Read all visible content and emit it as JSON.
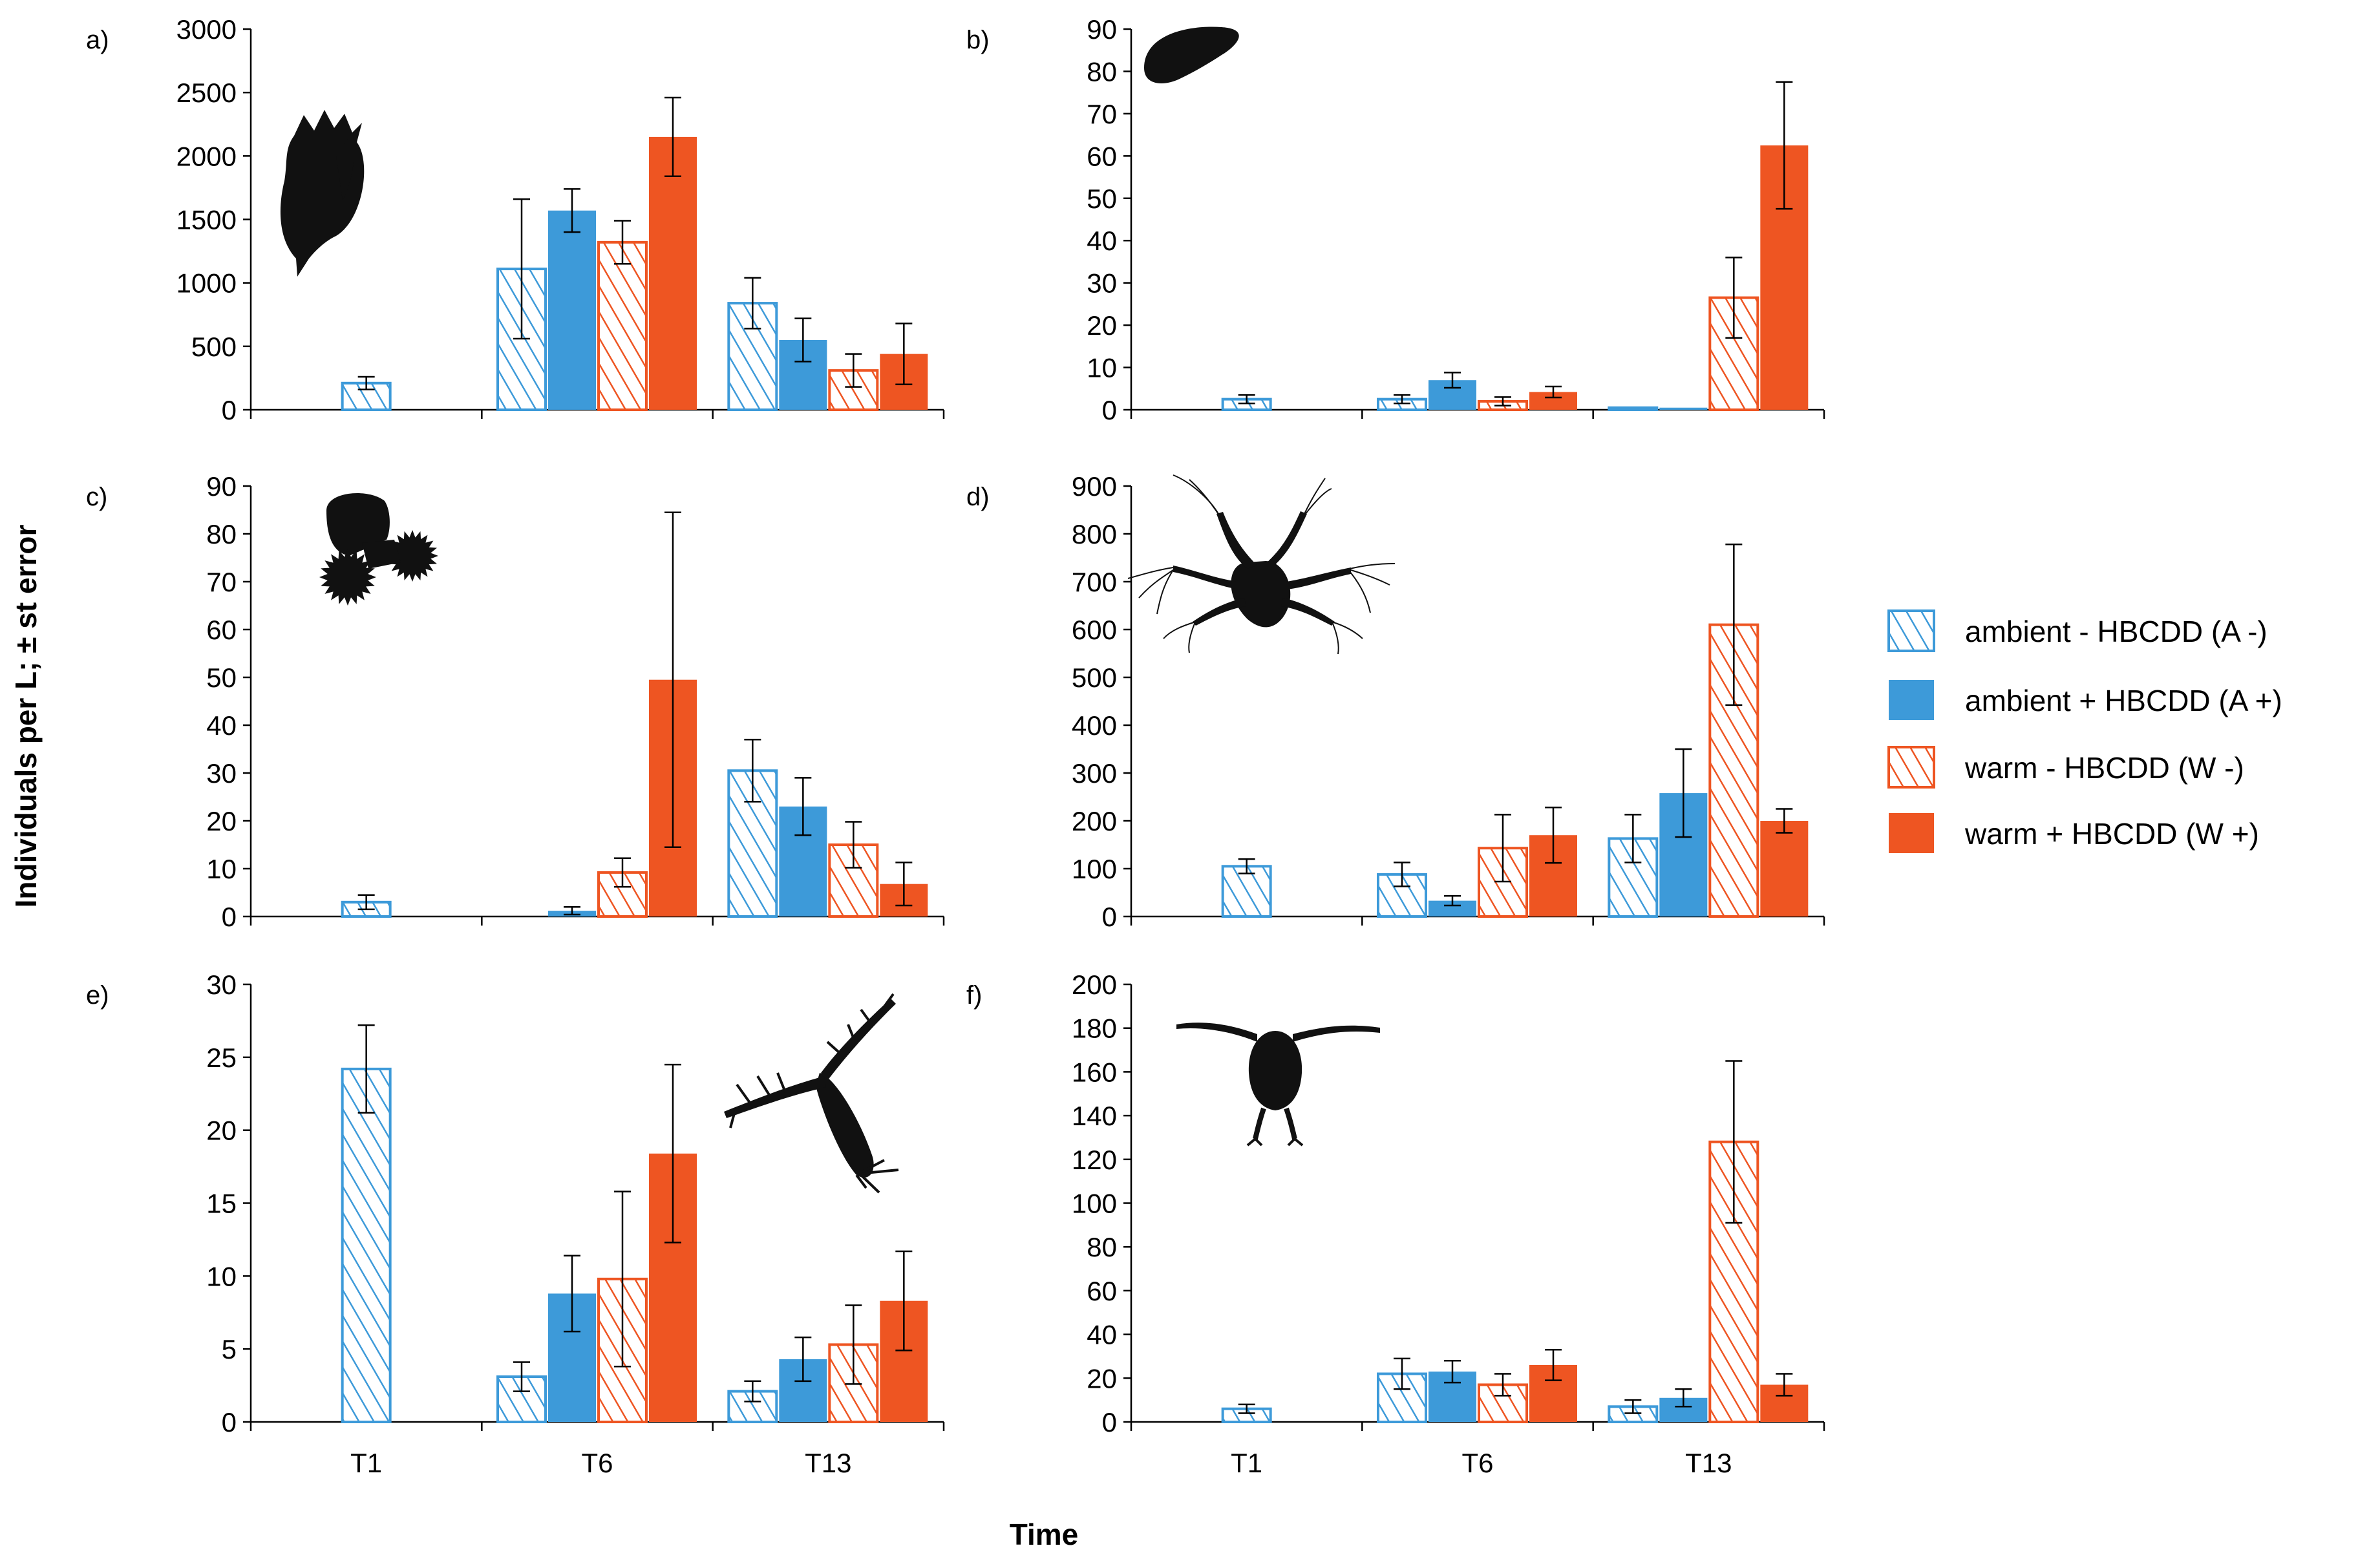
{
  "figure": {
    "ylabel": "Individuals per L; ± st error",
    "xlabel": "Time"
  },
  "legend": {
    "items": [
      {
        "key": "Am",
        "label": "ambient - HBCDD (A -)"
      },
      {
        "key": "Ap",
        "label": "ambient + HBCDD (A +)"
      },
      {
        "key": "Wm",
        "label": "warm - HBCDD (W -)"
      },
      {
        "key": "Wp",
        "label": "warm + HBCDD (W +)"
      }
    ]
  },
  "colors": {
    "blue": "#3d9ad9",
    "orange": "#ee5522",
    "axis": "#000000",
    "silhouette": "#111111"
  },
  "icons": [
    "rotifer-silhouette-icon",
    "blob-silhouette-icon",
    "rotifer-colony-silhouette-icon",
    "nauplius-silhouette-icon",
    "copepod-silhouette-icon",
    "daphnia-silhouette-icon"
  ],
  "chart_data": [
    {
      "type": "bar",
      "panel": "a)",
      "categories": [
        "T1",
        "T6",
        "T13"
      ],
      "ylim": [
        0,
        3000
      ],
      "yticks": [
        0,
        500,
        1000,
        1500,
        2000,
        2500,
        3000
      ],
      "series": [
        {
          "key": "Am",
          "values": [
            210,
            1110,
            840
          ],
          "errors": [
            50,
            550,
            200
          ]
        },
        {
          "key": "Ap",
          "values": [
            null,
            1570,
            550
          ],
          "errors": [
            null,
            170,
            170
          ]
        },
        {
          "key": "Wm",
          "values": [
            null,
            1320,
            310
          ],
          "errors": [
            null,
            170,
            130
          ]
        },
        {
          "key": "Wp",
          "values": [
            null,
            2150,
            440
          ],
          "errors": [
            null,
            310,
            240
          ]
        }
      ]
    },
    {
      "type": "bar",
      "panel": "b)",
      "categories": [
        "T1",
        "T6",
        "T13"
      ],
      "ylim": [
        0,
        90
      ],
      "yticks": [
        0,
        10,
        20,
        30,
        40,
        50,
        60,
        70,
        80,
        90
      ],
      "series": [
        {
          "key": "Am",
          "values": [
            2.5,
            2.5,
            0.5
          ],
          "errors": [
            1,
            1,
            0
          ]
        },
        {
          "key": "Ap",
          "values": [
            null,
            7,
            0.5
          ],
          "errors": [
            null,
            1.8,
            0
          ]
        },
        {
          "key": "Wm",
          "values": [
            null,
            2,
            26.5
          ],
          "errors": [
            null,
            1,
            9.5
          ]
        },
        {
          "key": "Wp",
          "values": [
            null,
            4.2,
            62.5
          ],
          "errors": [
            null,
            1.3,
            15
          ]
        }
      ]
    },
    {
      "type": "bar",
      "panel": "c)",
      "categories": [
        "T1",
        "T6",
        "T13"
      ],
      "ylim": [
        0,
        90
      ],
      "yticks": [
        0,
        10,
        20,
        30,
        40,
        50,
        60,
        70,
        80,
        90
      ],
      "series": [
        {
          "key": "Am",
          "values": [
            3,
            0,
            30.5
          ],
          "errors": [
            1.5,
            0,
            6.5
          ]
        },
        {
          "key": "Ap",
          "values": [
            null,
            1.2,
            23
          ],
          "errors": [
            null,
            0.8,
            6
          ]
        },
        {
          "key": "Wm",
          "values": [
            null,
            9.2,
            15
          ],
          "errors": [
            null,
            3,
            4.8
          ]
        },
        {
          "key": "Wp",
          "values": [
            null,
            49.5,
            6.8
          ],
          "errors": [
            null,
            35,
            4.5
          ]
        }
      ]
    },
    {
      "type": "bar",
      "panel": "d)",
      "categories": [
        "T1",
        "T6",
        "T13"
      ],
      "ylim": [
        0,
        900
      ],
      "yticks": [
        0,
        100,
        200,
        300,
        400,
        500,
        600,
        700,
        800,
        900
      ],
      "series": [
        {
          "key": "Am",
          "values": [
            105,
            88,
            163
          ],
          "errors": [
            15,
            25,
            50
          ]
        },
        {
          "key": "Ap",
          "values": [
            null,
            33,
            258
          ],
          "errors": [
            null,
            10,
            92
          ]
        },
        {
          "key": "Wm",
          "values": [
            null,
            143,
            610
          ],
          "errors": [
            null,
            70,
            168
          ]
        },
        {
          "key": "Wp",
          "values": [
            null,
            170,
            200
          ],
          "errors": [
            null,
            58,
            25
          ]
        }
      ]
    },
    {
      "type": "bar",
      "panel": "e)",
      "categories": [
        "T1",
        "T6",
        "T13"
      ],
      "ylim": [
        0,
        30
      ],
      "yticks": [
        0,
        5,
        10,
        15,
        20,
        25,
        30
      ],
      "series": [
        {
          "key": "Am",
          "values": [
            24.2,
            3.1,
            2.1
          ],
          "errors": [
            3,
            1,
            0.7
          ]
        },
        {
          "key": "Ap",
          "values": [
            null,
            8.8,
            4.3
          ],
          "errors": [
            null,
            2.6,
            1.5
          ]
        },
        {
          "key": "Wm",
          "values": [
            null,
            9.8,
            5.3
          ],
          "errors": [
            null,
            6,
            2.7
          ]
        },
        {
          "key": "Wp",
          "values": [
            null,
            18.4,
            8.3
          ],
          "errors": [
            null,
            6.1,
            3.4
          ]
        }
      ]
    },
    {
      "type": "bar",
      "panel": "f)",
      "categories": [
        "T1",
        "T6",
        "T13"
      ],
      "ylim": [
        0,
        200
      ],
      "yticks": [
        0,
        20,
        40,
        60,
        80,
        100,
        120,
        140,
        160,
        180,
        200
      ],
      "series": [
        {
          "key": "Am",
          "values": [
            6,
            22,
            7
          ],
          "errors": [
            2,
            7,
            3
          ]
        },
        {
          "key": "Ap",
          "values": [
            null,
            23,
            11
          ],
          "errors": [
            null,
            5,
            4
          ]
        },
        {
          "key": "Wm",
          "values": [
            null,
            17,
            128
          ],
          "errors": [
            null,
            5,
            37
          ]
        },
        {
          "key": "Wp",
          "values": [
            null,
            26,
            17
          ],
          "errors": [
            null,
            7,
            5
          ]
        }
      ]
    }
  ]
}
